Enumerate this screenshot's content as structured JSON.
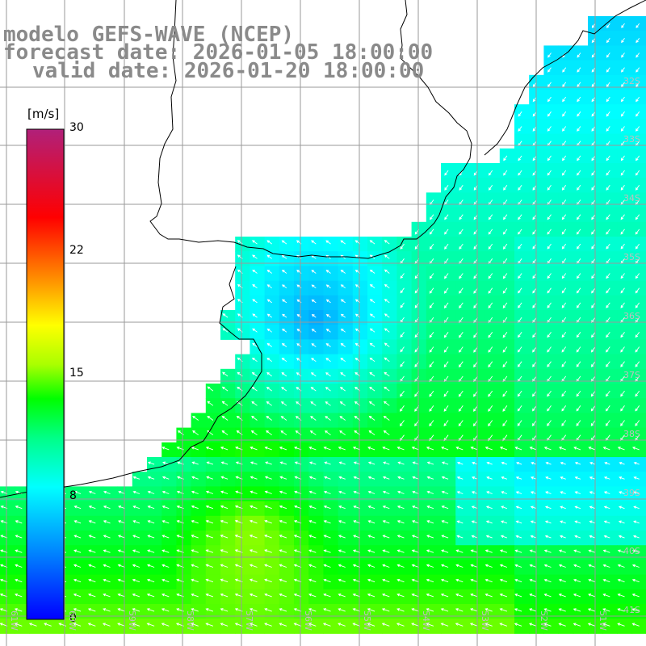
{
  "title": {
    "line1": "modelo GEFS-WAVE (NCEP)",
    "line2": "forecast date: 2026-01-05 18:00:00",
    "line3": "valid date: 2026-01-20 18:00:00"
  },
  "colorbar": {
    "unit": "[m/s]",
    "ticks": [
      "30",
      "22",
      "15",
      "8",
      "0"
    ],
    "colors": [
      "#0000ff",
      "#00aaff",
      "#00ffff",
      "#00ff66",
      "#33ff00",
      "#ffff00",
      "#ff9900",
      "#ff0000",
      "#cc0066",
      "#b0207a"
    ]
  },
  "map": {
    "lat_labels": [
      "32S",
      "33S",
      "34S",
      "35S",
      "36S",
      "37S",
      "38S",
      "39S",
      "40S",
      "41S"
    ],
    "lon_labels": [
      "61W",
      "60W",
      "59W",
      "58W",
      "57W",
      "56W",
      "55W",
      "54W",
      "53W",
      "52W",
      "51W"
    ],
    "land_color": "#ffffff",
    "grid_color": "#9a9a9a"
  }
}
